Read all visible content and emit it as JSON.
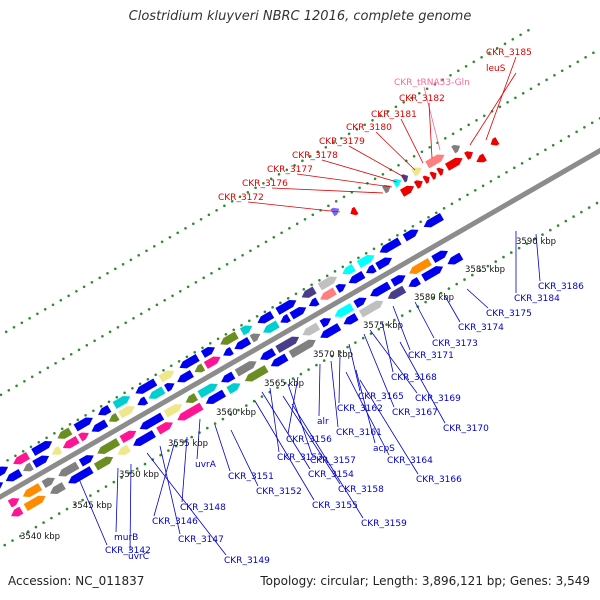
{
  "title": "Clostridium kluyveri NBRC 12016, complete genome",
  "footer": {
    "accession": "Accession: NC_011837",
    "summary": "Topology: circular; Length: 3,896,121 bp; Genes: 3,549"
  },
  "colors": {
    "backbone": "#8c8c8c",
    "gene_blue": "#0000ee",
    "gene_red": "#ee0000",
    "trna": "#ff6699",
    "label_blue": "#0000cc",
    "label_red": "#dd0000",
    "tick_green": "#2e8b2e",
    "feature_palette": [
      "#ff1493",
      "#6b8e23",
      "#f0e68c",
      "#00ced1",
      "#808080",
      "#ff8c00",
      "#ff7f7f",
      "#c0c0c0",
      "#483d8b",
      "#00ffff"
    ]
  },
  "scale_labels": [
    "3540 kbp",
    "3545 kbp",
    "3550 kbp",
    "3555 kbp",
    "3560 kbp",
    "3565 kbp",
    "3570 kbp",
    "3575 kbp",
    "3580 kbp",
    "3585 kbp",
    "3590 kbp"
  ],
  "red_labels": [
    "CKR_3185",
    "leuS",
    "CKR_tRNA53-Gln",
    "CKR_3182",
    "CKR_3181",
    "CKR_3180",
    "CKR_3179",
    "CKR_3178",
    "CKR_3177",
    "CKR_3176",
    "CKR_3172"
  ],
  "blue_labels": [
    "CKR_3186",
    "CKR_3184",
    "CKR_3175",
    "CKR_3174",
    "CKR_3173",
    "CKR_3171",
    "CKR_3168",
    "CKR_3169",
    "CKR_3167",
    "CKR_3170",
    "CKR_3165",
    "CKR_3162",
    "CKR_3161",
    "alr",
    "acpS",
    "CKR_3164",
    "CKR_3166",
    "CKR_3156",
    "CKR_3157",
    "CKR_3153",
    "CKR_3154",
    "CKR_3158",
    "CKR_3155",
    "CKR_3159",
    "uvrA",
    "CKR_3151",
    "CKR_3152",
    "CKR_3148",
    "CKR_3146",
    "CKR_3147",
    "CKR_3149",
    "murB",
    "uvrC",
    "CKR_3142"
  ]
}
